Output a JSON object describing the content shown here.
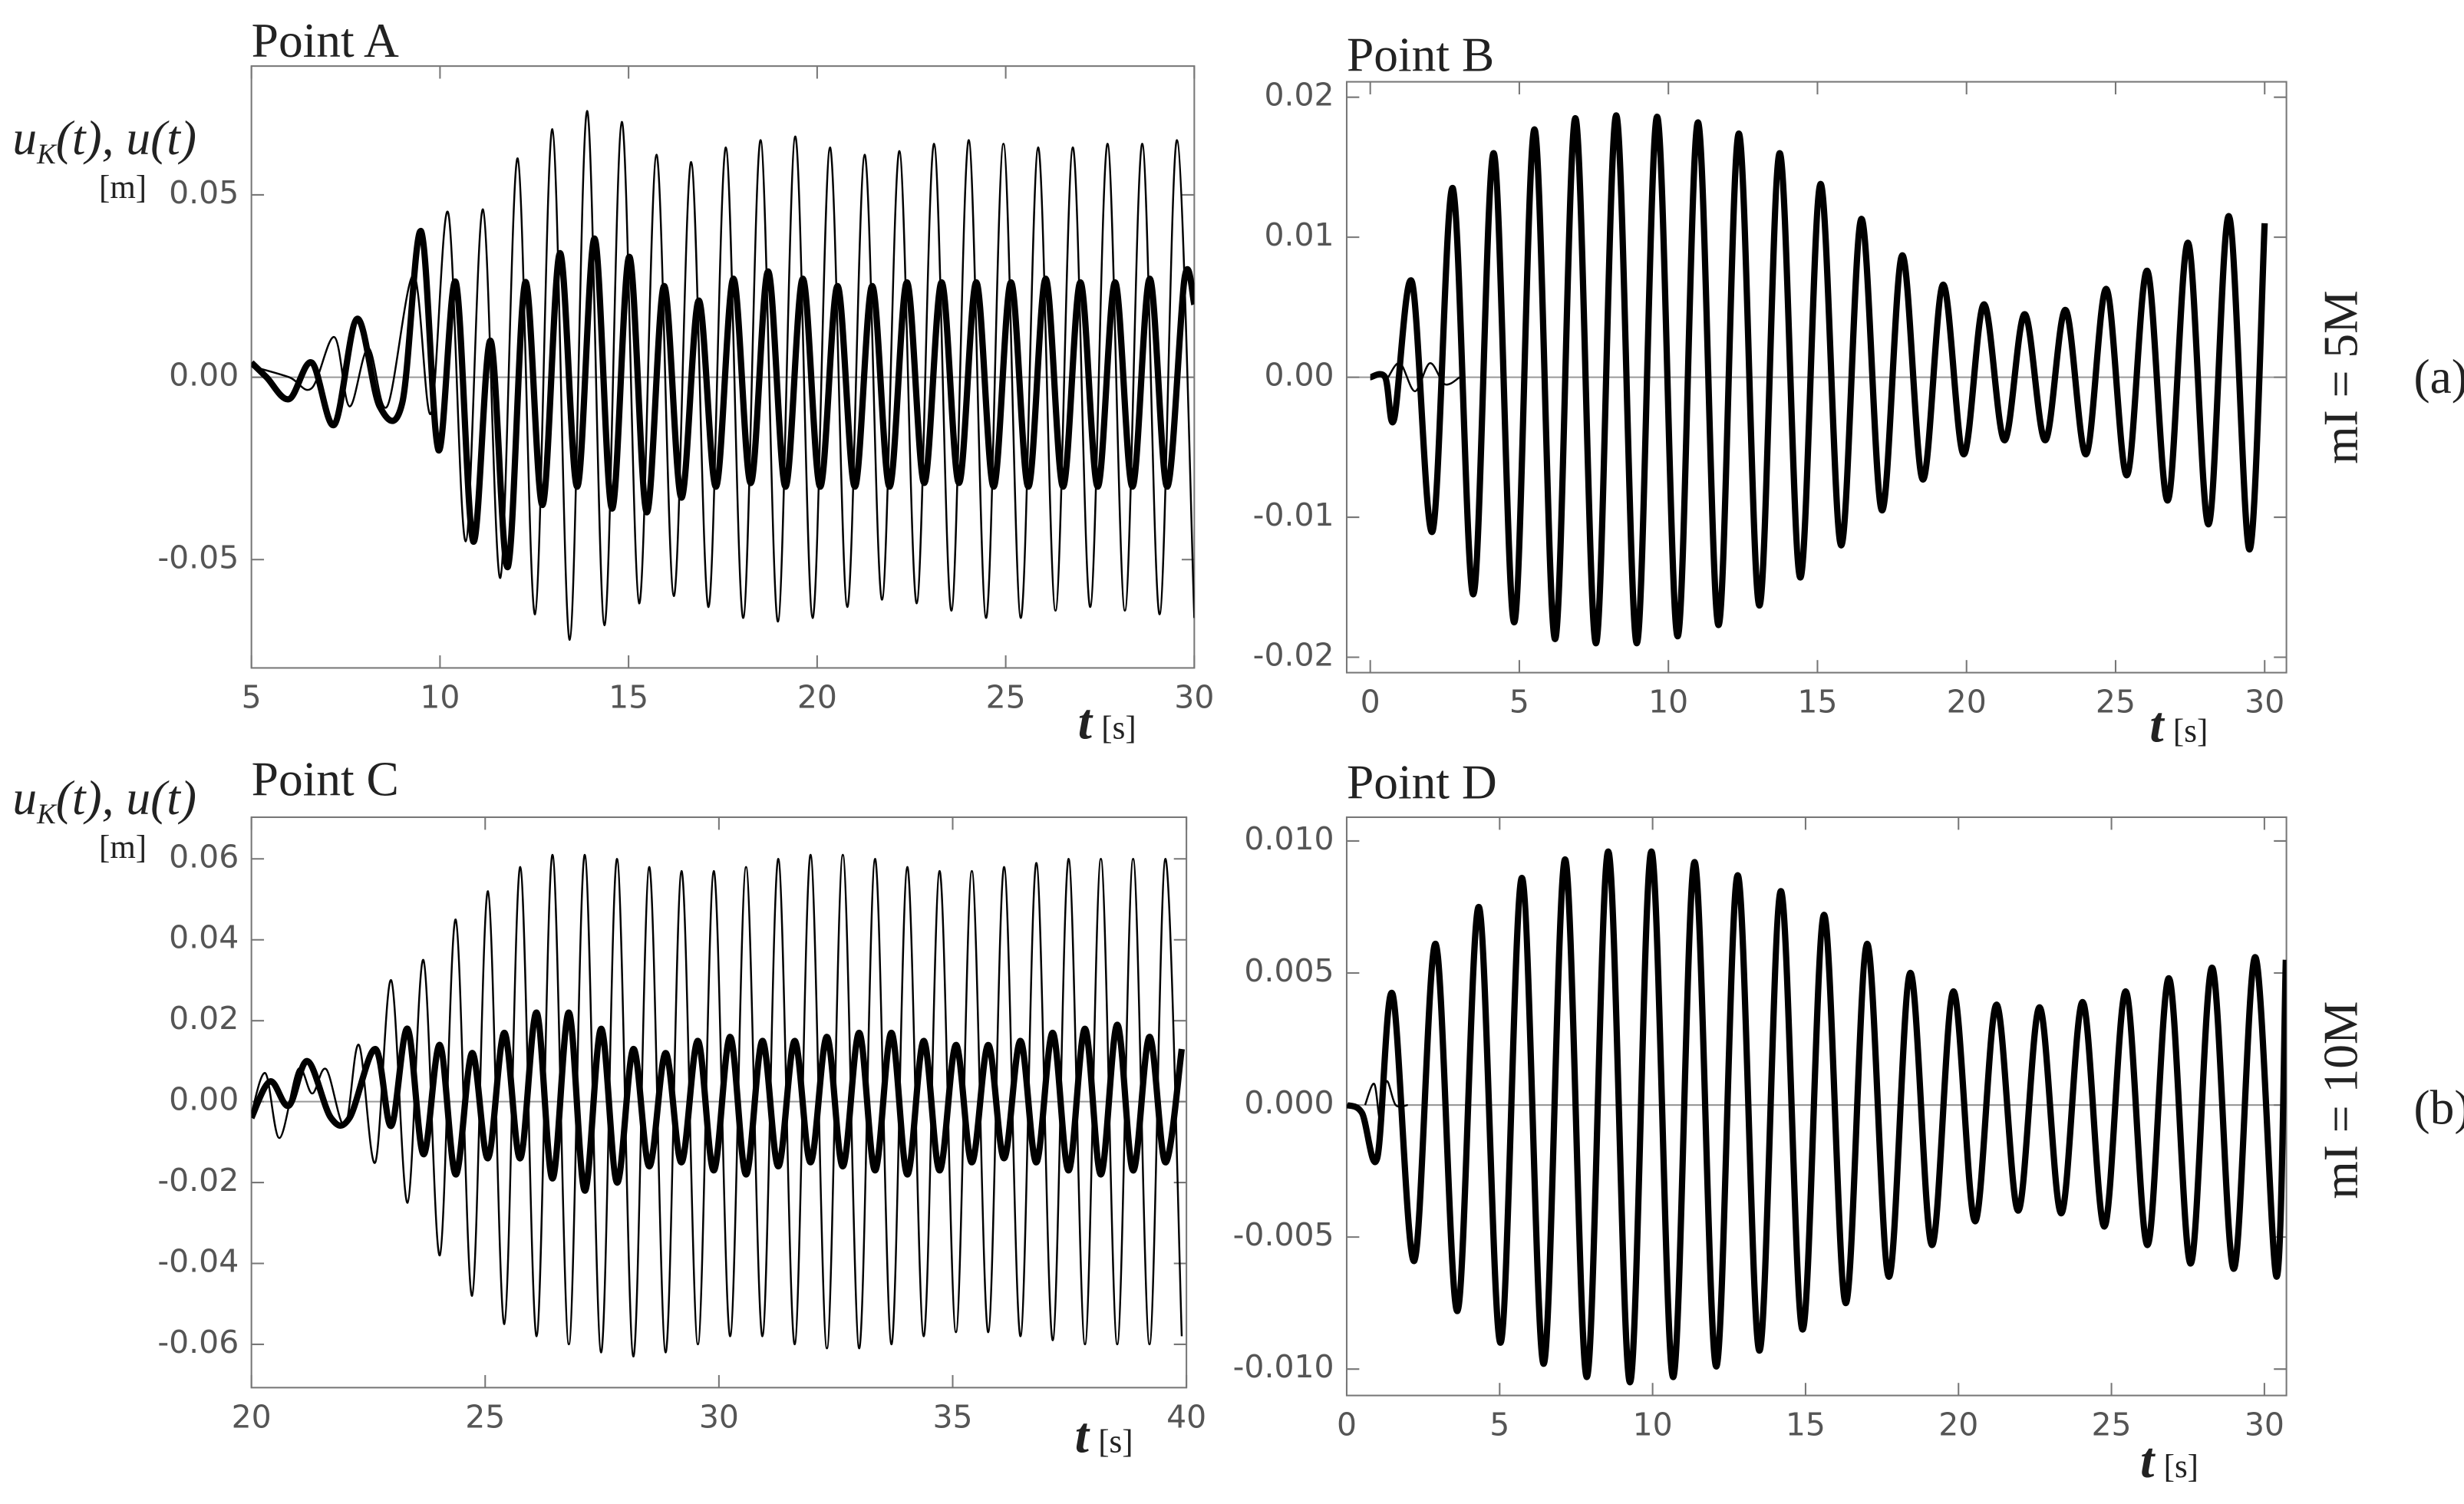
{
  "chart_data": [
    {
      "type": "line",
      "title": "Point A",
      "ylabel": {
        "main": "u",
        "sub": "K",
        "rest": "(t), u(t)"
      },
      "yunit": "[m]",
      "xlabel": "t",
      "xunit": "[s]",
      "xlim": [
        5,
        30
      ],
      "ylim": [
        -0.0797,
        0.0853
      ],
      "xticks": [
        5,
        10,
        15,
        20,
        25,
        30
      ],
      "yticks": [
        0.05,
        {
          "value": 0,
          "label": "0.00"
        },
        -0.05
      ],
      "zero_line": true,
      "series": [
        {
          "color": "#000000",
          "linewidth": 1.2,
          "x": [
            5,
            6,
            6.6,
            7.2,
            7.6,
            8.1,
            8.6,
            9.3,
            9.76,
            10.22,
            10.68,
            11.14,
            11.6,
            12.06,
            12.52,
            12.98,
            13.44,
            13.9,
            14.36,
            14.82,
            15.28,
            15.74,
            16.2,
            16.66,
            17.12,
            17.58,
            18.04,
            18.5,
            18.96,
            19.42,
            19.88,
            20.34,
            20.8,
            21.26,
            21.72,
            22.18,
            22.64,
            23.1,
            23.56,
            24.02,
            24.48,
            24.94,
            25.4,
            25.86,
            26.32,
            26.78,
            27.24,
            27.7,
            28.16,
            28.62,
            29.08,
            29.54,
            30.0
          ],
          "values": [
            0.003,
            0,
            -0.003,
            0.011,
            -0.008,
            0.008,
            -0.008,
            0.028,
            -0.01,
            0.045,
            -0.045,
            0.046,
            -0.055,
            0.06,
            -0.065,
            0.068,
            -0.072,
            0.073,
            -0.068,
            0.07,
            -0.062,
            0.061,
            -0.06,
            0.059,
            -0.063,
            0.063,
            -0.066,
            0.065,
            -0.067,
            0.066,
            -0.066,
            0.063,
            -0.063,
            0.061,
            -0.061,
            0.062,
            -0.062,
            0.064,
            -0.064,
            0.065,
            -0.066,
            0.064,
            -0.066,
            0.063,
            -0.064,
            0.063,
            -0.063,
            0.064,
            -0.064,
            0.064,
            -0.065,
            0.065,
            -0.066
          ]
        },
        {
          "color": "#000000",
          "linewidth": 4,
          "x": [
            5,
            5.4,
            6,
            6.6,
            7.2,
            7.8,
            8.4,
            9.0,
            9.5,
            9.96,
            10.42,
            10.88,
            11.34,
            11.8,
            12.26,
            12.72,
            13.18,
            13.64,
            14.1,
            14.56,
            15.02,
            15.48,
            15.94,
            16.4,
            16.86,
            17.32,
            17.78,
            18.24,
            18.7,
            19.16,
            19.62,
            20.08,
            20.54,
            21.0,
            21.46,
            21.92,
            22.38,
            22.84,
            23.3,
            23.76,
            24.22,
            24.68,
            25.14,
            25.6,
            26.06,
            26.52,
            26.98,
            27.44,
            27.9,
            28.36,
            28.82,
            29.28,
            29.74,
            30.0
          ],
          "values": [
            0.004,
            0,
            -0.006,
            0.004,
            -0.013,
            0.016,
            -0.008,
            -0.007,
            0.04,
            -0.02,
            0.026,
            -0.045,
            0.01,
            -0.052,
            0.026,
            -0.035,
            0.034,
            -0.03,
            0.038,
            -0.036,
            0.033,
            -0.037,
            0.025,
            -0.033,
            0.021,
            -0.03,
            0.027,
            -0.029,
            0.029,
            -0.03,
            0.027,
            -0.03,
            0.025,
            -0.03,
            0.025,
            -0.03,
            0.026,
            -0.029,
            0.026,
            -0.029,
            0.026,
            -0.03,
            0.026,
            -0.03,
            0.027,
            -0.03,
            0.026,
            -0.03,
            0.026,
            -0.03,
            0.027,
            -0.03,
            0.027,
            0.02
          ]
        }
      ]
    },
    {
      "type": "line",
      "title": "Point B",
      "xlabel": "t",
      "xunit": "[s]",
      "row_label": "mI = 5M",
      "panel_label": "(a)",
      "xlim": [
        -0.79,
        30.73
      ],
      "ylim": [
        -0.0211,
        0.0211
      ],
      "xticks": [
        0,
        5,
        10,
        15,
        20,
        25,
        30
      ],
      "yticks": [
        0.02,
        0.01,
        {
          "value": 0,
          "label": "0.00"
        },
        -0.01,
        -0.02
      ],
      "zero_line": true,
      "series": [
        {
          "color": "#000000",
          "linewidth": 1.2,
          "x": [
            0.6,
            1.0,
            1.5,
            2.0,
            2.5,
            3.0
          ],
          "values": [
            0,
            0.001,
            -0.001,
            0.001,
            -0.0005,
            0
          ]
        },
        {
          "color": "#000000",
          "linewidth": 4,
          "x": [
            0,
            0.5,
            0.8,
            1.4,
            2.09,
            2.77,
            3.46,
            4.14,
            4.83,
            5.51,
            6.2,
            6.88,
            7.57,
            8.25,
            8.94,
            9.62,
            10.31,
            10.99,
            11.68,
            12.36,
            13.05,
            13.73,
            14.42,
            15.1,
            15.79,
            16.47,
            17.16,
            17.84,
            18.53,
            19.21,
            19.9,
            20.58,
            21.27,
            21.95,
            22.64,
            23.32,
            24.01,
            24.69,
            25.38,
            26.06,
            26.75,
            27.43,
            28.12,
            28.8,
            29.49,
            30
          ],
          "values": [
            0,
            0,
            -0.003,
            0.0068,
            -0.011,
            0.0135,
            -0.0155,
            0.016,
            -0.0175,
            0.0177,
            -0.0187,
            0.0185,
            -0.019,
            0.0187,
            -0.019,
            0.0186,
            -0.0185,
            0.0182,
            -0.0177,
            0.0174,
            -0.0163,
            0.016,
            -0.0143,
            0.0138,
            -0.012,
            0.0113,
            -0.0095,
            0.0087,
            -0.0073,
            0.0066,
            -0.0055,
            0.0052,
            -0.0045,
            0.0045,
            -0.0045,
            0.0048,
            -0.0055,
            0.0063,
            -0.007,
            0.0076,
            -0.0088,
            0.0096,
            -0.0105,
            0.0115,
            -0.0123,
            0.011
          ]
        }
      ]
    },
    {
      "type": "line",
      "title": "Point C",
      "ylabel": {
        "main": "u",
        "sub": "K",
        "rest": "(t), u(t)"
      },
      "yunit": "[m]",
      "xlabel": "t",
      "xunit": "[s]",
      "xlim": [
        20,
        40
      ],
      "ylim": [
        -0.0707,
        0.0703
      ],
      "xticks": [
        20,
        25,
        30,
        35,
        40
      ],
      "yticks": [
        0.06,
        0.04,
        0.02,
        {
          "value": 0,
          "label": "0.00"
        },
        -0.02,
        -0.04,
        -0.06
      ],
      "zero_line": true,
      "series": [
        {
          "color": "#000000",
          "linewidth": 1.2,
          "x": [
            20,
            20.3,
            20.6,
            21.0,
            21.3,
            21.6,
            22.0,
            22.3,
            22.65,
            22.99,
            23.34,
            23.68,
            24.03,
            24.37,
            24.72,
            25.06,
            25.41,
            25.75,
            26.1,
            26.44,
            26.79,
            27.13,
            27.48,
            27.82,
            28.17,
            28.51,
            28.86,
            29.2,
            29.55,
            29.89,
            30.24,
            30.58,
            30.93,
            31.27,
            31.62,
            31.96,
            32.31,
            32.65,
            33.0,
            33.34,
            33.69,
            34.03,
            34.38,
            34.72,
            35.07,
            35.41,
            35.76,
            36.1,
            36.45,
            36.79,
            37.14,
            37.48,
            37.83,
            38.17,
            38.52,
            38.86,
            39.21,
            39.55,
            39.9
          ],
          "values": [
            -0.003,
            0.007,
            -0.009,
            0.008,
            0.002,
            0.008,
            -0.006,
            0.014,
            -0.015,
            0.03,
            -0.025,
            0.035,
            -0.038,
            0.045,
            -0.048,
            0.052,
            -0.055,
            0.058,
            -0.058,
            0.061,
            -0.06,
            0.061,
            -0.062,
            0.06,
            -0.063,
            0.058,
            -0.062,
            0.057,
            -0.06,
            0.057,
            -0.058,
            0.058,
            -0.058,
            0.06,
            -0.06,
            0.061,
            -0.061,
            0.061,
            -0.061,
            0.06,
            -0.06,
            0.058,
            -0.058,
            0.057,
            -0.057,
            0.057,
            -0.057,
            0.058,
            -0.058,
            0.059,
            -0.059,
            0.06,
            -0.06,
            0.06,
            -0.06,
            0.06,
            -0.06,
            0.06,
            -0.058
          ]
        },
        {
          "color": "#000000",
          "linewidth": 4,
          "x": [
            20,
            20.4,
            20.8,
            21.2,
            21.7,
            22.1,
            22.65,
            22.99,
            23.34,
            23.68,
            24.03,
            24.37,
            24.72,
            25.06,
            25.41,
            25.75,
            26.1,
            26.44,
            26.79,
            27.13,
            27.48,
            27.82,
            28.17,
            28.51,
            28.86,
            29.2,
            29.55,
            29.89,
            30.24,
            30.58,
            30.93,
            31.27,
            31.62,
            31.96,
            32.31,
            32.65,
            33.0,
            33.34,
            33.69,
            34.03,
            34.38,
            34.72,
            35.07,
            35.41,
            35.76,
            36.1,
            36.45,
            36.79,
            37.14,
            37.48,
            37.83,
            38.17,
            38.52,
            38.86,
            39.21,
            39.55,
            39.9
          ],
          "values": [
            -0.004,
            0.005,
            -0.001,
            0.01,
            -0.004,
            -0.004,
            0.013,
            -0.006,
            0.018,
            -0.013,
            0.014,
            -0.018,
            0.012,
            -0.014,
            0.017,
            -0.014,
            0.022,
            -0.019,
            0.022,
            -0.022,
            0.018,
            -0.02,
            0.013,
            -0.016,
            0.012,
            -0.015,
            0.015,
            -0.017,
            0.016,
            -0.018,
            0.015,
            -0.016,
            0.015,
            -0.015,
            0.016,
            -0.016,
            0.017,
            -0.017,
            0.017,
            -0.018,
            0.015,
            -0.017,
            0.014,
            -0.015,
            0.014,
            -0.014,
            0.015,
            -0.015,
            0.017,
            -0.017,
            0.018,
            -0.018,
            0.019,
            -0.017,
            0.016,
            -0.015,
            0.013
          ]
        }
      ]
    },
    {
      "type": "line",
      "title": "Point D",
      "xlabel": "t",
      "xunit": "[s]",
      "row_label": "mI = 10M",
      "panel_label": "(b)",
      "xlim": [
        0,
        30.72
      ],
      "ylim": [
        -0.011,
        0.0109
      ],
      "xticks": [
        0,
        5,
        10,
        15,
        20,
        25,
        30
      ],
      "yticks": [
        {
          "value": 0.01,
          "label": "0.010"
        },
        0.005,
        {
          "value": 0,
          "label": "0.000"
        },
        -0.005,
        {
          "value": -0.01,
          "label": "-0.010"
        }
      ],
      "zero_line": true,
      "series": [
        {
          "color": "#000000",
          "linewidth": 1.2,
          "x": [
            0.6,
            0.9,
            1.1,
            1.3,
            1.6,
            2.0
          ],
          "values": [
            0,
            0.0008,
            -0.0006,
            0.0009,
            0,
            0
          ]
        },
        {
          "color": "#000000",
          "linewidth": 4,
          "x": [
            0,
            0.5,
            1.0,
            1.5,
            2.21,
            2.91,
            3.62,
            4.32,
            5.03,
            5.73,
            6.44,
            7.14,
            7.85,
            8.55,
            9.26,
            9.96,
            10.67,
            11.37,
            12.08,
            12.78,
            13.49,
            14.19,
            14.9,
            15.6,
            16.31,
            17.01,
            17.72,
            18.42,
            19.13,
            19.83,
            20.54,
            21.24,
            21.95,
            22.65,
            23.36,
            24.06,
            24.77,
            25.47,
            26.18,
            26.88,
            27.59,
            28.29,
            29.0,
            29.7,
            30.4,
            30.7
          ],
          "values": [
            0,
            -0.0003,
            -0.002,
            0.0042,
            -0.0059,
            0.0061,
            -0.0078,
            0.0075,
            -0.009,
            0.0086,
            -0.0098,
            0.0093,
            -0.0103,
            0.0096,
            -0.0105,
            0.0096,
            -0.0103,
            0.0092,
            -0.0099,
            0.0087,
            -0.0093,
            0.0081,
            -0.0085,
            0.0072,
            -0.0075,
            0.0061,
            -0.0065,
            0.005,
            -0.0053,
            0.0043,
            -0.0044,
            0.0038,
            -0.004,
            0.0037,
            -0.0041,
            0.0039,
            -0.0046,
            0.0043,
            -0.0053,
            0.0048,
            -0.006,
            0.0052,
            -0.0062,
            0.0056,
            -0.0065,
            0.0055
          ]
        }
      ]
    }
  ]
}
